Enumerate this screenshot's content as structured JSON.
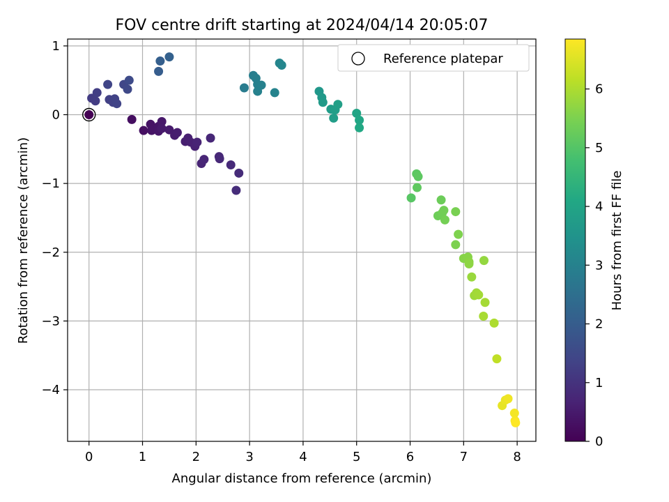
{
  "chart_data": {
    "type": "scatter",
    "title": "FOV centre drift starting at 2024/04/14 20:05:07",
    "xlabel": "Angular distance from reference (arcmin)",
    "ylabel": "Rotation from reference (arcmin)",
    "xlim": [
      -0.4,
      8.35
    ],
    "ylim": [
      -4.75,
      1.1
    ],
    "xticks": [
      0,
      1,
      2,
      3,
      4,
      5,
      6,
      7,
      8
    ],
    "yticks": [
      1,
      0,
      -1,
      -2,
      -3,
      -4
    ],
    "grid": true,
    "legend": {
      "entries": [
        "Reference platepar"
      ],
      "placement": "top-right"
    },
    "colorbar": {
      "label": "Hours from first FF file",
      "range": [
        0,
        6.85
      ],
      "ticks": [
        0,
        1,
        2,
        3,
        4,
        5,
        6
      ],
      "colormap": "viridis"
    },
    "reference_point": {
      "x": 0,
      "y": 0
    },
    "points": [
      {
        "x": 0.0,
        "y": 0.0,
        "t": 0.0
      },
      {
        "x": 0.8,
        "y": -0.07,
        "t": 0.25
      },
      {
        "x": 1.02,
        "y": -0.23,
        "t": 0.3
      },
      {
        "x": 1.15,
        "y": -0.14,
        "t": 0.35
      },
      {
        "x": 1.17,
        "y": -0.23,
        "t": 0.38
      },
      {
        "x": 1.3,
        "y": -0.17,
        "t": 0.4
      },
      {
        "x": 1.3,
        "y": -0.24,
        "t": 0.42
      },
      {
        "x": 1.36,
        "y": -0.1,
        "t": 0.45
      },
      {
        "x": 1.36,
        "y": -0.2,
        "t": 0.48
      },
      {
        "x": 1.5,
        "y": -0.22,
        "t": 0.5
      },
      {
        "x": 1.6,
        "y": -0.3,
        "t": 0.52
      },
      {
        "x": 1.65,
        "y": -0.26,
        "t": 0.55
      },
      {
        "x": 1.8,
        "y": -0.39,
        "t": 0.58
      },
      {
        "x": 1.85,
        "y": -0.34,
        "t": 0.6
      },
      {
        "x": 1.9,
        "y": -0.4,
        "t": 0.62
      },
      {
        "x": 1.98,
        "y": -0.46,
        "t": 0.65
      },
      {
        "x": 2.02,
        "y": -0.4,
        "t": 0.68
      },
      {
        "x": 2.1,
        "y": -0.71,
        "t": 0.7
      },
      {
        "x": 2.15,
        "y": -0.65,
        "t": 0.72
      },
      {
        "x": 2.27,
        "y": -0.34,
        "t": 0.75
      },
      {
        "x": 2.43,
        "y": -0.61,
        "t": 0.78
      },
      {
        "x": 2.44,
        "y": -0.64,
        "t": 0.8
      },
      {
        "x": 2.65,
        "y": -0.73,
        "t": 0.82
      },
      {
        "x": 2.8,
        "y": -0.85,
        "t": 0.85
      },
      {
        "x": 2.75,
        "y": -1.1,
        "t": 0.88
      },
      {
        "x": 0.05,
        "y": 0.24,
        "t": 1.2
      },
      {
        "x": 0.12,
        "y": 0.2,
        "t": 1.22
      },
      {
        "x": 0.15,
        "y": 0.32,
        "t": 1.25
      },
      {
        "x": 0.38,
        "y": 0.22,
        "t": 1.3
      },
      {
        "x": 0.45,
        "y": 0.18,
        "t": 1.32
      },
      {
        "x": 0.48,
        "y": 0.23,
        "t": 1.35
      },
      {
        "x": 0.52,
        "y": 0.16,
        "t": 1.38
      },
      {
        "x": 0.35,
        "y": 0.44,
        "t": 1.4
      },
      {
        "x": 0.65,
        "y": 0.44,
        "t": 1.45
      },
      {
        "x": 0.72,
        "y": 0.37,
        "t": 1.5
      },
      {
        "x": 0.75,
        "y": 0.5,
        "t": 1.55
      },
      {
        "x": 1.3,
        "y": 0.63,
        "t": 2.0
      },
      {
        "x": 1.33,
        "y": 0.78,
        "t": 2.05
      },
      {
        "x": 1.5,
        "y": 0.84,
        "t": 2.1
      },
      {
        "x": 2.9,
        "y": 0.39,
        "t": 2.85
      },
      {
        "x": 3.07,
        "y": 0.57,
        "t": 2.9
      },
      {
        "x": 3.12,
        "y": 0.53,
        "t": 2.92
      },
      {
        "x": 3.15,
        "y": 0.44,
        "t": 2.95
      },
      {
        "x": 3.15,
        "y": 0.34,
        "t": 2.98
      },
      {
        "x": 3.22,
        "y": 0.43,
        "t": 3.0
      },
      {
        "x": 3.47,
        "y": 0.32,
        "t": 3.05
      },
      {
        "x": 3.56,
        "y": 0.75,
        "t": 3.1
      },
      {
        "x": 3.6,
        "y": 0.72,
        "t": 3.12
      },
      {
        "x": 4.3,
        "y": 0.34,
        "t": 3.6
      },
      {
        "x": 4.35,
        "y": 0.25,
        "t": 3.65
      },
      {
        "x": 4.37,
        "y": 0.18,
        "t": 3.7
      },
      {
        "x": 4.52,
        "y": 0.08,
        "t": 3.75
      },
      {
        "x": 4.57,
        "y": -0.05,
        "t": 3.78
      },
      {
        "x": 4.6,
        "y": 0.07,
        "t": 3.8
      },
      {
        "x": 4.65,
        "y": 0.15,
        "t": 3.85
      },
      {
        "x": 5.0,
        "y": 0.02,
        "t": 4.0
      },
      {
        "x": 5.05,
        "y": -0.08,
        "t": 4.05
      },
      {
        "x": 5.05,
        "y": -0.19,
        "t": 4.1
      },
      {
        "x": 6.02,
        "y": -1.21,
        "t": 5.05
      },
      {
        "x": 6.12,
        "y": -0.86,
        "t": 5.1
      },
      {
        "x": 6.15,
        "y": -0.9,
        "t": 5.12
      },
      {
        "x": 6.13,
        "y": -1.06,
        "t": 5.15
      },
      {
        "x": 6.58,
        "y": -1.24,
        "t": 5.3
      },
      {
        "x": 6.52,
        "y": -1.47,
        "t": 5.32
      },
      {
        "x": 6.6,
        "y": -1.43,
        "t": 5.35
      },
      {
        "x": 6.63,
        "y": -1.39,
        "t": 5.38
      },
      {
        "x": 6.65,
        "y": -1.53,
        "t": 5.4
      },
      {
        "x": 6.85,
        "y": -1.41,
        "t": 5.45
      },
      {
        "x": 6.85,
        "y": -1.89,
        "t": 5.5
      },
      {
        "x": 6.9,
        "y": -1.74,
        "t": 5.52
      },
      {
        "x": 7.0,
        "y": -2.09,
        "t": 5.6
      },
      {
        "x": 7.08,
        "y": -2.07,
        "t": 5.62
      },
      {
        "x": 7.1,
        "y": -2.14,
        "t": 5.65
      },
      {
        "x": 7.1,
        "y": -2.17,
        "t": 5.68
      },
      {
        "x": 7.38,
        "y": -2.12,
        "t": 5.75
      },
      {
        "x": 7.15,
        "y": -2.36,
        "t": 5.8
      },
      {
        "x": 7.2,
        "y": -2.63,
        "t": 5.85
      },
      {
        "x": 7.24,
        "y": -2.59,
        "t": 5.88
      },
      {
        "x": 7.28,
        "y": -2.62,
        "t": 5.9
      },
      {
        "x": 7.4,
        "y": -2.73,
        "t": 5.92
      },
      {
        "x": 7.37,
        "y": -2.93,
        "t": 5.95
      },
      {
        "x": 7.57,
        "y": -3.03,
        "t": 6.0
      },
      {
        "x": 7.62,
        "y": -3.55,
        "t": 6.2
      },
      {
        "x": 7.72,
        "y": -4.23,
        "t": 6.6
      },
      {
        "x": 7.78,
        "y": -4.15,
        "t": 6.65
      },
      {
        "x": 7.83,
        "y": -4.13,
        "t": 6.7
      },
      {
        "x": 7.95,
        "y": -4.34,
        "t": 6.75
      },
      {
        "x": 7.96,
        "y": -4.45,
        "t": 6.8
      },
      {
        "x": 7.97,
        "y": -4.48,
        "t": 6.85
      }
    ]
  }
}
